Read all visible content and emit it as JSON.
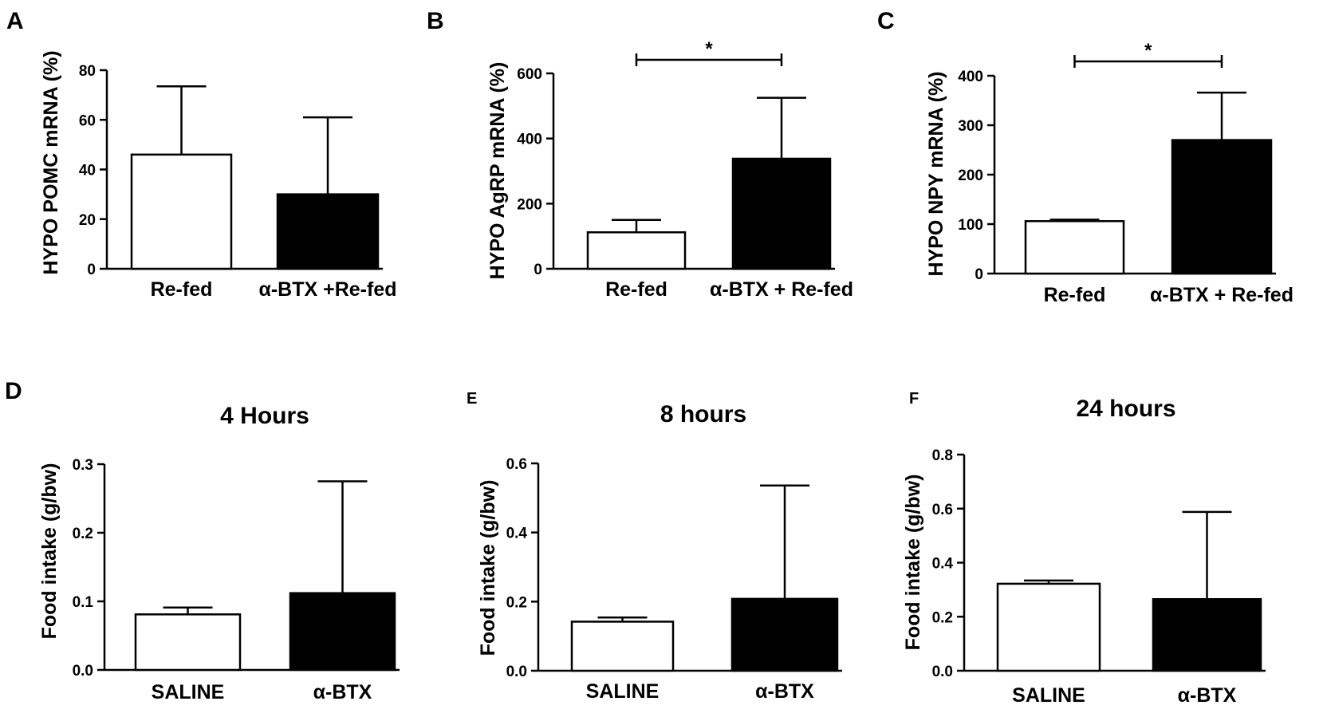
{
  "chart_data": [
    {
      "id": "A",
      "type": "bar",
      "panel_label": "A",
      "title": "",
      "ylabel": "HYPO POMC mRNA (%)",
      "ylim": [
        0,
        80
      ],
      "yticks": [
        "0",
        "20",
        "40",
        "60",
        "80"
      ],
      "yticks_values": [
        0,
        20,
        40,
        60,
        80
      ],
      "categories": [
        "Re-fed",
        "α-BTX +Re-fed"
      ],
      "values": [
        46,
        30
      ],
      "errors": [
        27.5,
        31
      ],
      "bar_fill": [
        "#ffffff",
        "#000000"
      ],
      "significance": null
    },
    {
      "id": "B",
      "type": "bar",
      "panel_label": "B",
      "title": "",
      "ylabel": "HYPO AgRP mRNA (%)",
      "ylim": [
        0,
        600
      ],
      "yticks": [
        "0",
        "200",
        "400",
        "600"
      ],
      "yticks_values": [
        0,
        200,
        400,
        600
      ],
      "categories": [
        "Re-fed",
        "α-BTX + Re-fed"
      ],
      "values": [
        112,
        338
      ],
      "errors": [
        38,
        187
      ],
      "bar_fill": [
        "#ffffff",
        "#000000"
      ],
      "significance": {
        "label": "*",
        "between": [
          0,
          1
        ]
      }
    },
    {
      "id": "C",
      "type": "bar",
      "panel_label": "C",
      "title": "",
      "ylabel": "HYPO NPY mRNA (%)",
      "ylim": [
        0,
        400
      ],
      "yticks": [
        "0",
        "100",
        "200",
        "300",
        "400"
      ],
      "yticks_values": [
        0,
        100,
        200,
        300,
        400
      ],
      "categories": [
        "Re-fed",
        "α-BTX + Re-fed"
      ],
      "values": [
        106,
        270
      ],
      "errors": [
        3,
        96
      ],
      "bar_fill": [
        "#ffffff",
        "#000000"
      ],
      "significance": {
        "label": "*",
        "between": [
          0,
          1
        ]
      }
    },
    {
      "id": "D",
      "type": "bar",
      "panel_label": "D",
      "title": "4 Hours",
      "ylabel": "Food intake (g/bw)",
      "ylim": [
        0,
        0.3
      ],
      "yticks": [
        "0.0",
        "0.1",
        "0.2",
        "0.3"
      ],
      "yticks_values": [
        0,
        0.1,
        0.2,
        0.3
      ],
      "categories": [
        "SALINE",
        "α-BTX"
      ],
      "values": [
        0.081,
        0.112
      ],
      "errors": [
        0.01,
        0.163
      ],
      "bar_fill": [
        "#ffffff",
        "#000000"
      ],
      "significance": null
    },
    {
      "id": "E",
      "type": "bar",
      "panel_label": "E",
      "title": "8 hours",
      "ylabel": "Food intake (g/bw)",
      "ylim": [
        0,
        0.6
      ],
      "yticks": [
        "0.0",
        "0.2",
        "0.4",
        "0.6"
      ],
      "yticks_values": [
        0,
        0.2,
        0.4,
        0.6
      ],
      "categories": [
        "SALINE",
        "α-BTX"
      ],
      "values": [
        0.142,
        0.208
      ],
      "errors": [
        0.012,
        0.328
      ],
      "bar_fill": [
        "#ffffff",
        "#000000"
      ],
      "significance": null
    },
    {
      "id": "F",
      "type": "bar",
      "panel_label": "F",
      "title": "24 hours",
      "ylabel": "Food intake (g/bw)",
      "ylim": [
        0,
        0.8
      ],
      "yticks": [
        "0.0",
        "0.2",
        "0.4",
        "0.6",
        "0.8"
      ],
      "yticks_values": [
        0,
        0.2,
        0.4,
        0.6,
        0.8
      ],
      "categories": [
        "SALINE",
        "α-BTX"
      ],
      "values": [
        0.322,
        0.265
      ],
      "errors": [
        0.012,
        0.323
      ],
      "bar_fill": [
        "#ffffff",
        "#000000"
      ],
      "significance": null
    }
  ]
}
